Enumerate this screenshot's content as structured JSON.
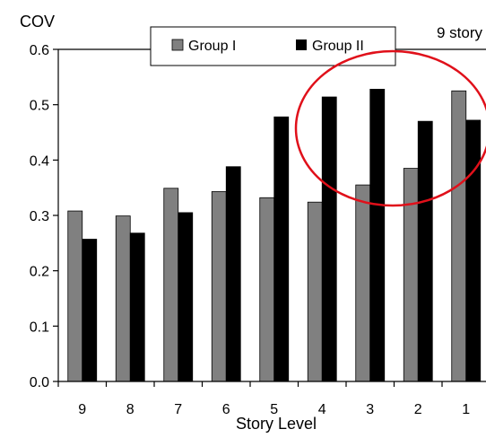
{
  "chart_data": {
    "type": "bar",
    "title": "",
    "annotation": "9 story",
    "ylabel": "COV",
    "xlabel": "Story Level",
    "ylim": [
      0,
      0.6
    ],
    "yticks": [
      "0.0",
      "0.1",
      "0.2",
      "0.3",
      "0.4",
      "0.5",
      "0.6"
    ],
    "categories": [
      "9",
      "8",
      "7",
      "6",
      "5",
      "4",
      "3",
      "2",
      "1"
    ],
    "series": [
      {
        "name": "Group I",
        "color": "#808080",
        "values": [
          0.308,
          0.299,
          0.349,
          0.343,
          0.332,
          0.324,
          0.355,
          0.385,
          0.525
        ]
      },
      {
        "name": "Group II",
        "color": "#000000",
        "values": [
          0.257,
          0.268,
          0.305,
          0.388,
          0.478,
          0.514,
          0.528,
          0.47,
          0.472
        ]
      }
    ],
    "legend_position": "top",
    "highlight": {
      "shape": "ellipse",
      "color": "#e0101a",
      "around_categories": [
        "4",
        "3",
        "2",
        "1"
      ]
    },
    "grid": false
  }
}
